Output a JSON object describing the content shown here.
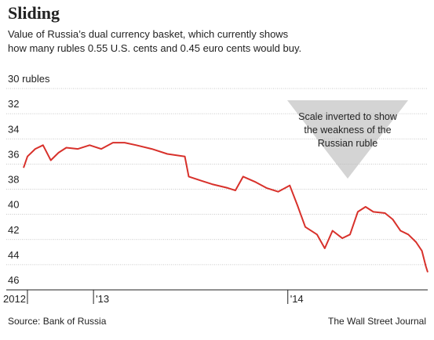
{
  "chart_data": {
    "type": "line",
    "title": "Sliding",
    "subtitle": [
      "Value of Russia’s dual currency basket, which currently shows",
      "how many rubles 0.55 U.S. cents and 0.45 euro cents would buy."
    ],
    "annotation": [
      "Scale inverted to show",
      "the weakness of the",
      "Russian ruble"
    ],
    "source": "Source: Bank of Russia",
    "credit": "The Wall Street Journal",
    "x": [
      2012.64,
      2012.66,
      2012.7,
      2012.74,
      2012.78,
      2012.82,
      2012.86,
      2012.92,
      2012.98,
      2013.04,
      2013.1,
      2013.16,
      2013.22,
      2013.3,
      2013.38,
      2013.47,
      2013.49,
      2013.55,
      2013.61,
      2013.69,
      2013.73,
      2013.77,
      2013.83,
      2013.89,
      2013.95,
      2014.01,
      2014.05,
      2014.09,
      2014.15,
      2014.19,
      2014.23,
      2014.28,
      2014.32,
      2014.36,
      2014.4,
      2014.44,
      2014.5,
      2014.54,
      2014.58,
      2014.62,
      2014.66,
      2014.69,
      2014.71,
      2014.72
    ],
    "series": [
      {
        "name": "Dual currency basket",
        "color": "#d8312b",
        "values": [
          36.3,
          35.4,
          34.8,
          34.5,
          35.7,
          35.1,
          34.7,
          34.8,
          34.5,
          34.8,
          34.3,
          34.3,
          34.5,
          34.8,
          35.2,
          35.4,
          37.0,
          37.3,
          37.6,
          37.9,
          38.1,
          37.0,
          37.4,
          37.9,
          38.2,
          37.7,
          39.3,
          41.0,
          41.6,
          42.7,
          41.3,
          41.9,
          41.6,
          39.8,
          39.4,
          39.8,
          39.9,
          40.4,
          41.3,
          41.6,
          42.2,
          42.9,
          44.1,
          44.6
        ]
      }
    ],
    "xlim": [
      2012.64,
      2014.72
    ],
    "xticks": [
      {
        "value": 2012.66,
        "label": "2012"
      },
      {
        "value": 2013,
        "label": "'13"
      },
      {
        "value": 2014,
        "label": "'14"
      }
    ],
    "ylim": [
      30,
      46
    ],
    "y_inverted": true,
    "yticks": [
      {
        "value": 30,
        "label": "30 rubles"
      },
      32,
      34,
      36,
      38,
      40,
      42,
      44,
      46
    ],
    "grid": true
  }
}
